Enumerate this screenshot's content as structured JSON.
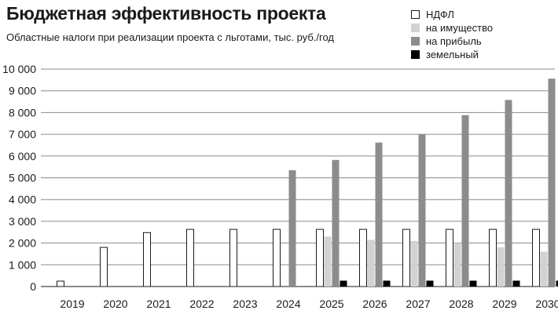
{
  "chart_data": {
    "type": "bar",
    "title": "Бюджетная эффективность проекта",
    "subtitle": "Областные налоги при реализации проекта с льготами, тыс. руб./год",
    "xlabel": "",
    "ylabel": "",
    "ylim": [
      0,
      10000
    ],
    "yticks": [
      "0",
      "1 000",
      "2 000",
      "3 000",
      "4 000",
      "5 000",
      "6 000",
      "7 000",
      "8 000",
      "9 000",
      "10 000"
    ],
    "grid": "horizontal",
    "legend_position": "top-right",
    "categories": [
      "2019",
      "2020",
      "2021",
      "2022",
      "2023",
      "2024",
      "2025",
      "2026",
      "2027",
      "2028",
      "2029",
      "2030"
    ],
    "series": [
      {
        "name": "НДФЛ",
        "color": "#ffffff",
        "values": [
          250,
          1800,
          2480,
          2630,
          2630,
          2630,
          2630,
          2630,
          2630,
          2630,
          2630,
          2630
        ]
      },
      {
        "name": "на имущество",
        "color": "#d2d2d2",
        "values": [
          0,
          0,
          0,
          0,
          0,
          0,
          2300,
          2150,
          2100,
          2000,
          1800,
          1600
        ]
      },
      {
        "name": "на прибыль",
        "color": "#8c8c8c",
        "values": [
          0,
          0,
          0,
          0,
          0,
          5350,
          5820,
          6620,
          7000,
          7880,
          8580,
          9560
        ]
      },
      {
        "name": "земельный",
        "color": "#000000",
        "values": [
          0,
          0,
          0,
          0,
          0,
          0,
          270,
          270,
          270,
          270,
          270,
          270
        ]
      }
    ]
  }
}
